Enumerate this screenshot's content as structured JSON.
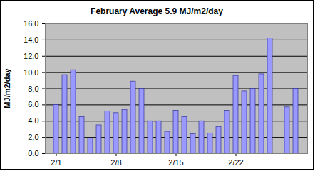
{
  "chart_data": {
    "type": "bar",
    "title": "February Average 5.9 MJ/m2/day",
    "y_label": "MJ/m2/day",
    "categories": [
      "2/1",
      null,
      null,
      null,
      null,
      null,
      null,
      "2/8",
      null,
      null,
      null,
      null,
      null,
      null,
      "2/15",
      null,
      null,
      null,
      null,
      null,
      null,
      "2/22",
      null,
      null,
      null,
      null,
      null,
      null,
      null
    ],
    "values": [
      6.0,
      9.7,
      10.3,
      4.5,
      1.9,
      3.5,
      5.2,
      5.0,
      5.4,
      8.9,
      8.0,
      4.0,
      4.0,
      2.7,
      5.3,
      4.5,
      2.4,
      4.0,
      2.5,
      3.3,
      5.3,
      9.6,
      7.7,
      8.0,
      9.8,
      14.2,
      0,
      5.7,
      8.0
    ],
    "color": "#9999ff",
    "ylim": [
      0,
      16
    ],
    "yticks": [
      {
        "value": 0,
        "label": "0.0"
      },
      {
        "value": 2,
        "label": "2.0"
      },
      {
        "value": 4,
        "label": "4.0"
      },
      {
        "value": 6,
        "label": "6.0"
      },
      {
        "value": 8,
        "label": "8.0"
      },
      {
        "value": 10,
        "label": "10.0"
      },
      {
        "value": 12,
        "label": "12.0"
      },
      {
        "value": 14,
        "label": "14.0"
      },
      {
        "value": 16,
        "label": "16.0"
      }
    ],
    "grid": true
  }
}
